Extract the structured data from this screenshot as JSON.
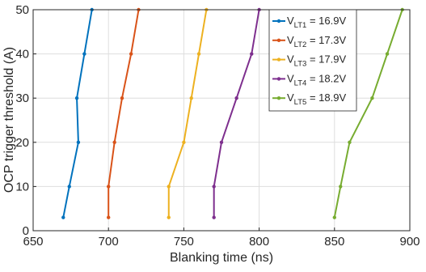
{
  "chart_data": {
    "type": "line",
    "title": "",
    "xlabel": "Blanking time (ns)",
    "ylabel": "OCP trigger threshold (A)",
    "xlim": [
      650,
      900
    ],
    "ylim": [
      0,
      50
    ],
    "xticks": [
      650,
      700,
      750,
      800,
      850,
      900
    ],
    "yticks": [
      0,
      10,
      20,
      30,
      40,
      50
    ],
    "grid": true,
    "legend_position": "top-right",
    "series": [
      {
        "name_main": "V",
        "name_sub": "LT1",
        "name_value": " = 16.9V",
        "color": "#0072BD",
        "points": [
          [
            670,
            3
          ],
          [
            674,
            10
          ],
          [
            680,
            20
          ],
          [
            679,
            30
          ],
          [
            684,
            40
          ],
          [
            689,
            50
          ]
        ]
      },
      {
        "name_main": "V",
        "name_sub": "LT2",
        "name_value": " = 17.3V",
        "color": "#D95319",
        "points": [
          [
            700,
            3
          ],
          [
            700,
            10
          ],
          [
            704,
            20
          ],
          [
            709,
            30
          ],
          [
            715,
            40
          ],
          [
            720,
            50
          ]
        ]
      },
      {
        "name_main": "V",
        "name_sub": "LT3",
        "name_value": " = 17.9V",
        "color": "#EDB120",
        "points": [
          [
            740,
            3
          ],
          [
            740,
            10
          ],
          [
            750,
            20
          ],
          [
            755,
            30
          ],
          [
            760,
            40
          ],
          [
            765,
            50
          ]
        ]
      },
      {
        "name_main": "V",
        "name_sub": "LT4",
        "name_value": " = 18.2V",
        "color": "#7E2F8E",
        "points": [
          [
            770,
            3
          ],
          [
            770,
            10
          ],
          [
            775,
            20
          ],
          [
            785,
            30
          ],
          [
            795,
            40
          ],
          [
            800,
            50
          ]
        ]
      },
      {
        "name_main": "V",
        "name_sub": "LT5",
        "name_value": " = 18.9V",
        "color": "#77AC30",
        "points": [
          [
            850,
            3
          ],
          [
            854,
            10
          ],
          [
            860,
            20
          ],
          [
            875,
            30
          ],
          [
            885,
            40
          ],
          [
            895,
            50
          ]
        ]
      }
    ]
  }
}
